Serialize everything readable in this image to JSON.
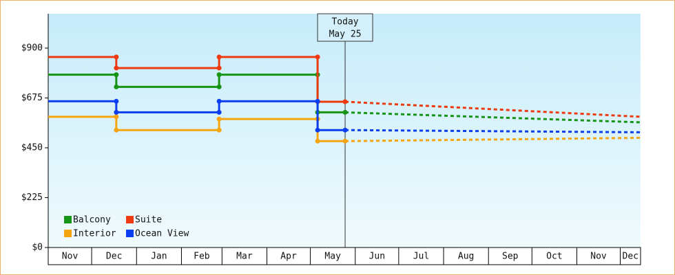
{
  "chart_data": {
    "type": "step-line",
    "x": [
      0,
      47,
      47,
      118,
      118,
      186,
      186,
      205
    ],
    "forecast_x": [
      205,
      409
    ],
    "xlim": [
      0,
      409
    ],
    "xticks": [
      0,
      30,
      61,
      92,
      120,
      151,
      181,
      212,
      242,
      273,
      304,
      334,
      365,
      395
    ],
    "months": [
      "Nov",
      "Dec",
      "Jan",
      "Feb",
      "Mar",
      "Apr",
      "May",
      "Jun",
      "Jul",
      "Aug",
      "Sep",
      "Oct",
      "Nov",
      "Dec"
    ],
    "ylim": [
      0,
      1055
    ],
    "yticks": [
      {
        "value": 0,
        "label": "$0"
      },
      {
        "value": 225,
        "label": "$225"
      },
      {
        "value": 450,
        "label": "$450"
      },
      {
        "value": 675,
        "label": "$675"
      },
      {
        "value": 900,
        "label": "$900"
      }
    ],
    "annotation": {
      "x": 205,
      "lines": [
        "Today",
        "May 25"
      ]
    },
    "series": [
      {
        "name": "Balcony",
        "color": "#169416",
        "values": [
          780,
          780,
          725,
          725,
          780,
          780,
          610,
          610
        ],
        "forecast": [
          610,
          565
        ]
      },
      {
        "name": "Suite",
        "color": "#ee3a10",
        "values": [
          860,
          860,
          810,
          810,
          860,
          860,
          658,
          658
        ],
        "forecast": [
          658,
          590
        ]
      },
      {
        "name": "Interior",
        "color": "#f5a511",
        "values": [
          590,
          590,
          530,
          530,
          580,
          580,
          480,
          480
        ],
        "forecast": [
          480,
          495
        ]
      },
      {
        "name": "Ocean View",
        "color": "#0a3ef0",
        "values": [
          660,
          660,
          610,
          610,
          660,
          660,
          530,
          530
        ],
        "forecast": [
          530,
          520
        ]
      }
    ]
  }
}
